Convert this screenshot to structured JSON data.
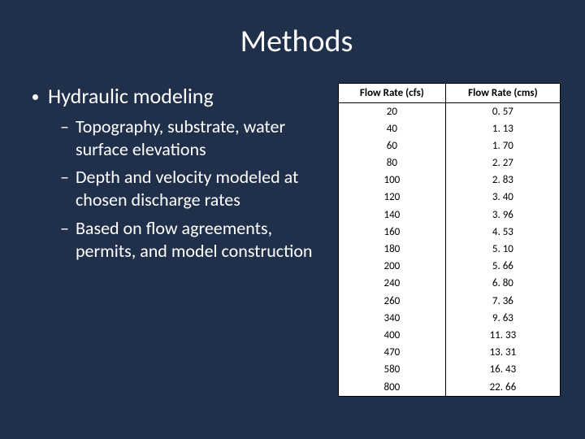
{
  "slide": {
    "title": "Methods",
    "background_color": "#20304a",
    "title_color": "#ffffff",
    "text_color": "#ffffff",
    "title_fontsize": 38,
    "bullet1_fontsize": 26,
    "bullet2_fontsize": 22
  },
  "bullets": {
    "main": "Hydraulic modeling",
    "subs": [
      "Topography, substrate, water surface elevations",
      "Depth and velocity modeled at chosen discharge rates",
      "Based on flow agreements, permits, and model construction"
    ]
  },
  "table": {
    "type": "table",
    "background_color": "#ffffff",
    "border_color": "#000000",
    "header_fontsize": 13,
    "cell_fontsize": 13,
    "columns": [
      "Flow Rate (cfs)",
      "Flow Rate (cms)"
    ],
    "col_widths": [
      0.5,
      0.5
    ],
    "alignment": [
      "center",
      "center"
    ],
    "rows": [
      [
        "20",
        "0. 57"
      ],
      [
        "40",
        "1. 13"
      ],
      [
        "60",
        "1. 70"
      ],
      [
        "80",
        "2. 27"
      ],
      [
        "100",
        "2. 83"
      ],
      [
        "120",
        "3. 40"
      ],
      [
        "140",
        "3. 96"
      ],
      [
        "160",
        "4. 53"
      ],
      [
        "180",
        "5. 10"
      ],
      [
        "200",
        "5. 66"
      ],
      [
        "240",
        "6. 80"
      ],
      [
        "260",
        "7. 36"
      ],
      [
        "340",
        "9. 63"
      ],
      [
        "400",
        "11. 33"
      ],
      [
        "470",
        "13. 31"
      ],
      [
        "580",
        "16. 43"
      ],
      [
        "800",
        "22. 66"
      ]
    ]
  }
}
